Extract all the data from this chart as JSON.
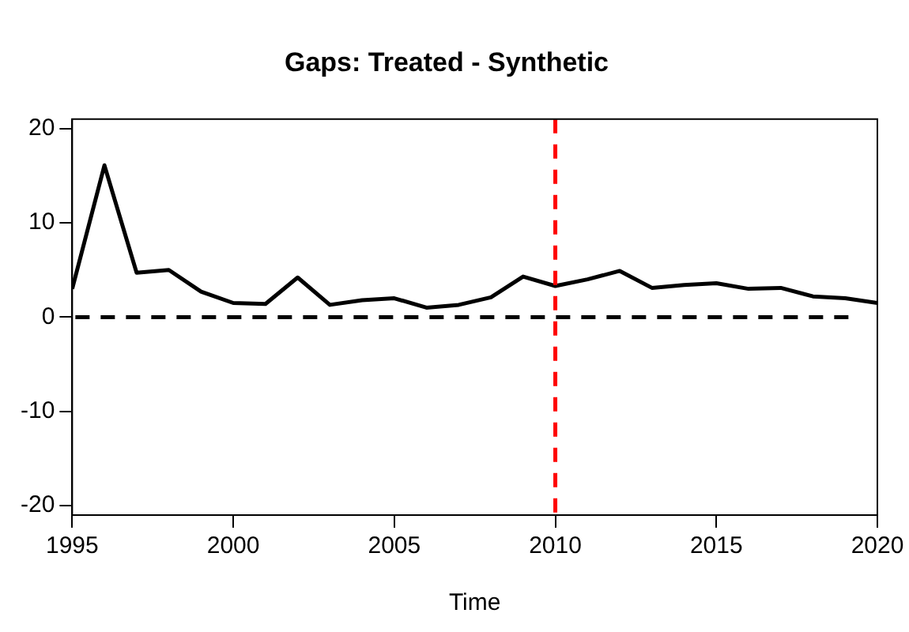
{
  "chart_data": {
    "type": "line",
    "title": "Gaps: Treated - Synthetic",
    "xlabel": "Time",
    "x": [
      1995,
      1996,
      1997,
      1998,
      1999,
      2000,
      2001,
      2002,
      2003,
      2004,
      2005,
      2006,
      2007,
      2008,
      2009,
      2010,
      2011,
      2012,
      2013,
      2014,
      2015,
      2016,
      2017,
      2018,
      2019,
      2020
    ],
    "series": [
      {
        "color": "#000000",
        "values": [
          3.0,
          16.1,
          4.7,
          5.0,
          2.7,
          1.5,
          1.4,
          4.2,
          1.3,
          1.8,
          2.0,
          1.0,
          1.3,
          2.1,
          4.3,
          3.3,
          4.0,
          4.9,
          3.1,
          3.4,
          3.6,
          3.0,
          3.1,
          2.2,
          2.0,
          1.5
        ]
      }
    ],
    "xlim": [
      1995,
      2020
    ],
    "xticks": [
      1995,
      2000,
      2005,
      2010,
      2015,
      2020
    ],
    "ylim": [
      -21,
      21
    ],
    "yticks": [
      -20,
      -10,
      0,
      10,
      20
    ],
    "ref_lines": [
      {
        "axis": "y",
        "value": 0,
        "color": "#000000",
        "line_style": "dashed"
      },
      {
        "axis": "x",
        "value": 2010,
        "color": "#ff0000",
        "line_style": "dashed"
      }
    ],
    "grid": false,
    "legend": false,
    "marker": "none",
    "line_style": "solid"
  }
}
